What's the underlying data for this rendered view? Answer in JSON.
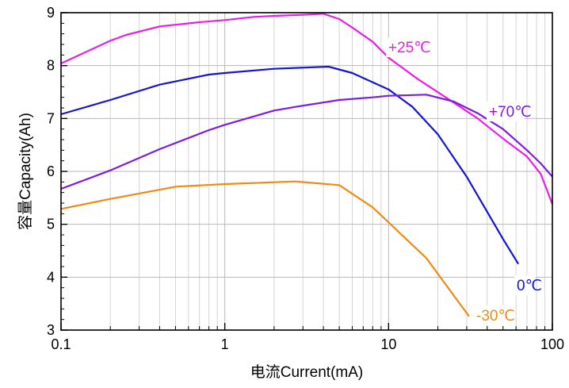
{
  "chart_data": {
    "type": "line",
    "xscale": "log",
    "xlim": [
      0.1,
      100
    ],
    "ylim": [
      3,
      9
    ],
    "xlabel": "电流Current(mA)",
    "ylabel": "容量Capacity(Ah)",
    "grid": true,
    "xticks": [
      "0.1",
      "1",
      "10",
      "100"
    ],
    "yticks": [
      "3",
      "4",
      "5",
      "6",
      "7",
      "8",
      "9"
    ],
    "series": [
      {
        "name": "+25℃",
        "color": "#e81ee8",
        "points": [
          [
            0.1,
            8.04
          ],
          [
            0.2,
            8.47
          ],
          [
            0.25,
            8.58
          ],
          [
            0.4,
            8.74
          ],
          [
            0.7,
            8.82
          ],
          [
            1.0,
            8.86
          ],
          [
            1.5,
            8.92
          ],
          [
            2.0,
            8.94
          ],
          [
            3.0,
            8.96
          ],
          [
            4.0,
            8.98
          ],
          [
            5.0,
            8.88
          ],
          [
            6.0,
            8.72
          ],
          [
            8.0,
            8.45
          ],
          [
            10.0,
            8.15
          ],
          [
            15.0,
            7.75
          ],
          [
            25.0,
            7.3
          ],
          [
            35.0,
            7.0
          ],
          [
            50.0,
            6.62
          ],
          [
            70.0,
            6.28
          ],
          [
            85.0,
            5.95
          ],
          [
            100.0,
            5.38
          ]
        ]
      },
      {
        "name": "0℃",
        "color": "#1414d2",
        "points": [
          [
            0.1,
            7.08
          ],
          [
            0.2,
            7.35
          ],
          [
            0.4,
            7.64
          ],
          [
            0.8,
            7.83
          ],
          [
            1.0,
            7.86
          ],
          [
            2.0,
            7.94
          ],
          [
            4.3,
            7.98
          ],
          [
            6.0,
            7.86
          ],
          [
            10.0,
            7.55
          ],
          [
            14.0,
            7.22
          ],
          [
            20.0,
            6.7
          ],
          [
            30.0,
            5.9
          ],
          [
            50.0,
            4.72
          ],
          [
            62.0,
            4.25
          ]
        ]
      },
      {
        "name": "+70℃",
        "color": "#7f1be0",
        "points": [
          [
            0.1,
            5.67
          ],
          [
            0.2,
            6.02
          ],
          [
            0.4,
            6.42
          ],
          [
            0.8,
            6.78
          ],
          [
            1.0,
            6.88
          ],
          [
            2.0,
            7.15
          ],
          [
            2.7,
            7.22
          ],
          [
            5.0,
            7.35
          ],
          [
            8.0,
            7.4
          ],
          [
            10.0,
            7.43
          ],
          [
            17.0,
            7.45
          ],
          [
            25.0,
            7.32
          ],
          [
            35.0,
            7.1
          ],
          [
            50.0,
            6.8
          ],
          [
            70.0,
            6.4
          ],
          [
            85.0,
            6.15
          ],
          [
            100.0,
            5.9
          ]
        ]
      },
      {
        "name": "-30℃",
        "color": "#f08a14",
        "points": [
          [
            0.1,
            5.29
          ],
          [
            0.2,
            5.48
          ],
          [
            0.5,
            5.71
          ],
          [
            1.0,
            5.76
          ],
          [
            2.7,
            5.81
          ],
          [
            5.0,
            5.74
          ],
          [
            8.0,
            5.32
          ],
          [
            17.0,
            4.36
          ],
          [
            31.0,
            3.26
          ]
        ]
      }
    ]
  }
}
